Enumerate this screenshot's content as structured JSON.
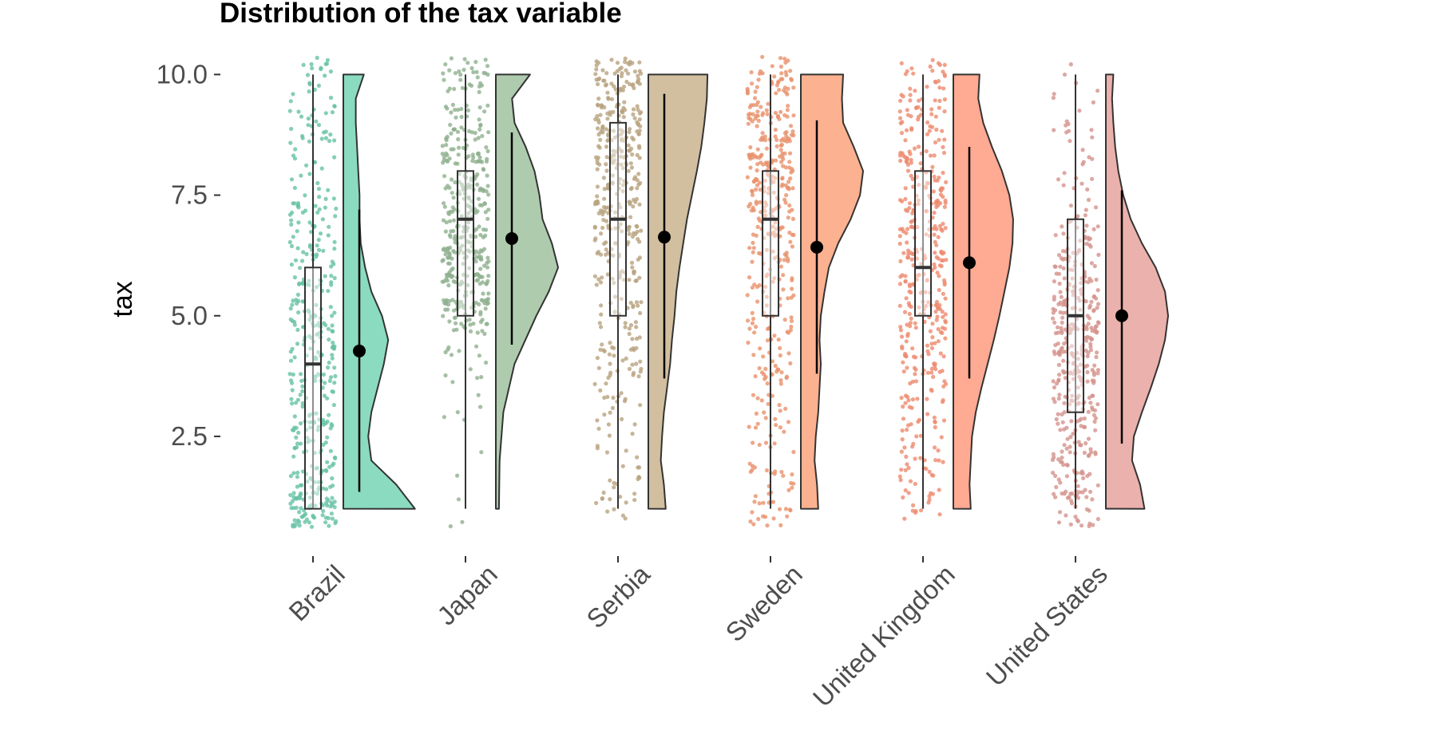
{
  "chart_data": {
    "type": "raincloud",
    "title": "Distribution of the  tax  variable",
    "ylabel": "tax",
    "xlabel": "",
    "ylim": [
      0.3,
      10.8
    ],
    "yticks": [
      2.5,
      5.0,
      7.5,
      10.0
    ],
    "ytick_labels": [
      "2.5",
      "5.0",
      "7.5",
      "10.0"
    ],
    "grid": false,
    "legend": "none",
    "categories": [
      "Brazil",
      "Japan",
      "Serbia",
      "Sweden",
      "United Kingdom",
      "United States"
    ],
    "series": [
      {
        "category": "Brazil",
        "color": "#66c2a5",
        "box": {
          "min": 1.0,
          "q1": 1.0,
          "median": 4.0,
          "q3": 6.0,
          "max": 10.0
        },
        "mean": 4.27,
        "sd_range": [
          1.35,
          7.2
        ],
        "density": [
          [
            1.0,
            1.15
          ],
          [
            1.5,
            0.85
          ],
          [
            2.0,
            0.45
          ],
          [
            2.5,
            0.4
          ],
          [
            3.0,
            0.45
          ],
          [
            3.5,
            0.55
          ],
          [
            4.0,
            0.65
          ],
          [
            4.5,
            0.72
          ],
          [
            5.0,
            0.62
          ],
          [
            5.5,
            0.45
          ],
          [
            6.0,
            0.35
          ],
          [
            6.5,
            0.28
          ],
          [
            7.0,
            0.26
          ],
          [
            7.5,
            0.26
          ],
          [
            8.0,
            0.24
          ],
          [
            8.5,
            0.22
          ],
          [
            9.0,
            0.2
          ],
          [
            9.5,
            0.2
          ],
          [
            10.0,
            0.33
          ]
        ]
      },
      {
        "category": "Japan",
        "color": "#8fb08f",
        "box": {
          "min": 1.0,
          "q1": 5.0,
          "median": 7.0,
          "q3": 8.0,
          "max": 10.0
        },
        "mean": 6.6,
        "sd_range": [
          4.4,
          8.8
        ],
        "density": [
          [
            1.0,
            0.05
          ],
          [
            2.0,
            0.06
          ],
          [
            3.0,
            0.12
          ],
          [
            4.0,
            0.3
          ],
          [
            5.0,
            0.65
          ],
          [
            5.5,
            0.85
          ],
          [
            6.0,
            1.0
          ],
          [
            6.5,
            0.9
          ],
          [
            7.0,
            0.75
          ],
          [
            7.5,
            0.7
          ],
          [
            8.0,
            0.62
          ],
          [
            8.5,
            0.48
          ],
          [
            9.0,
            0.3
          ],
          [
            9.5,
            0.26
          ],
          [
            10.0,
            0.55
          ]
        ]
      },
      {
        "category": "Serbia",
        "color": "#b8a27e",
        "box": {
          "min": 1.0,
          "q1": 5.0,
          "median": 7.0,
          "q3": 9.0,
          "max": 10.0
        },
        "mean": 6.63,
        "sd_range": [
          3.7,
          9.6
        ],
        "density": [
          [
            1.0,
            0.28
          ],
          [
            1.5,
            0.25
          ],
          [
            2.0,
            0.2
          ],
          [
            2.5,
            0.22
          ],
          [
            3.0,
            0.25
          ],
          [
            3.5,
            0.3
          ],
          [
            4.0,
            0.35
          ],
          [
            4.5,
            0.38
          ],
          [
            5.0,
            0.42
          ],
          [
            5.5,
            0.45
          ],
          [
            6.0,
            0.5
          ],
          [
            6.5,
            0.56
          ],
          [
            7.0,
            0.62
          ],
          [
            7.5,
            0.7
          ],
          [
            8.0,
            0.78
          ],
          [
            8.5,
            0.85
          ],
          [
            9.0,
            0.9
          ],
          [
            9.5,
            0.94
          ],
          [
            10.0,
            0.95
          ]
        ]
      },
      {
        "category": "Sweden",
        "color": "#e8916b",
        "box": {
          "min": 1.0,
          "q1": 5.0,
          "median": 7.0,
          "q3": 8.0,
          "max": 10.0
        },
        "mean": 6.42,
        "sd_range": [
          3.8,
          9.05
        ],
        "density": [
          [
            1.0,
            0.28
          ],
          [
            1.5,
            0.26
          ],
          [
            2.0,
            0.22
          ],
          [
            2.5,
            0.24
          ],
          [
            3.0,
            0.28
          ],
          [
            3.5,
            0.3
          ],
          [
            4.0,
            0.32
          ],
          [
            4.5,
            0.3
          ],
          [
            5.0,
            0.32
          ],
          [
            5.5,
            0.38
          ],
          [
            6.0,
            0.45
          ],
          [
            6.5,
            0.6
          ],
          [
            7.0,
            0.8
          ],
          [
            7.5,
            0.95
          ],
          [
            8.0,
            1.0
          ],
          [
            8.5,
            0.85
          ],
          [
            9.0,
            0.68
          ],
          [
            9.5,
            0.66
          ],
          [
            10.0,
            0.68
          ]
        ]
      },
      {
        "category": "United Kingdom",
        "color": "#ee8a6e",
        "box": {
          "min": 1.0,
          "q1": 5.0,
          "median": 6.0,
          "q3": 8.0,
          "max": 10.0
        },
        "mean": 6.1,
        "sd_range": [
          3.7,
          8.5
        ],
        "density": [
          [
            1.0,
            0.28
          ],
          [
            1.5,
            0.26
          ],
          [
            2.0,
            0.28
          ],
          [
            2.5,
            0.3
          ],
          [
            3.0,
            0.36
          ],
          [
            3.5,
            0.45
          ],
          [
            4.0,
            0.55
          ],
          [
            4.5,
            0.65
          ],
          [
            5.0,
            0.74
          ],
          [
            5.5,
            0.82
          ],
          [
            6.0,
            0.9
          ],
          [
            6.5,
            0.95
          ],
          [
            7.0,
            0.96
          ],
          [
            7.5,
            0.9
          ],
          [
            8.0,
            0.78
          ],
          [
            8.5,
            0.62
          ],
          [
            9.0,
            0.48
          ],
          [
            9.5,
            0.4
          ],
          [
            10.0,
            0.42
          ]
        ]
      },
      {
        "category": "United States",
        "color": "#d5928c",
        "box": {
          "min": 1.0,
          "q1": 3.0,
          "median": 5.0,
          "q3": 7.0,
          "max": 10.0
        },
        "mean": 5.0,
        "sd_range": [
          2.35,
          7.6
        ],
        "density": [
          [
            1.0,
            0.62
          ],
          [
            1.5,
            0.55
          ],
          [
            2.0,
            0.42
          ],
          [
            2.5,
            0.45
          ],
          [
            3.0,
            0.58
          ],
          [
            3.5,
            0.72
          ],
          [
            4.0,
            0.85
          ],
          [
            4.5,
            0.95
          ],
          [
            5.0,
            1.0
          ],
          [
            5.5,
            0.95
          ],
          [
            6.0,
            0.8
          ],
          [
            6.5,
            0.58
          ],
          [
            7.0,
            0.4
          ],
          [
            7.5,
            0.28
          ],
          [
            8.0,
            0.2
          ],
          [
            8.5,
            0.15
          ],
          [
            9.0,
            0.12
          ],
          [
            9.5,
            0.1
          ],
          [
            10.0,
            0.12
          ]
        ]
      }
    ]
  }
}
